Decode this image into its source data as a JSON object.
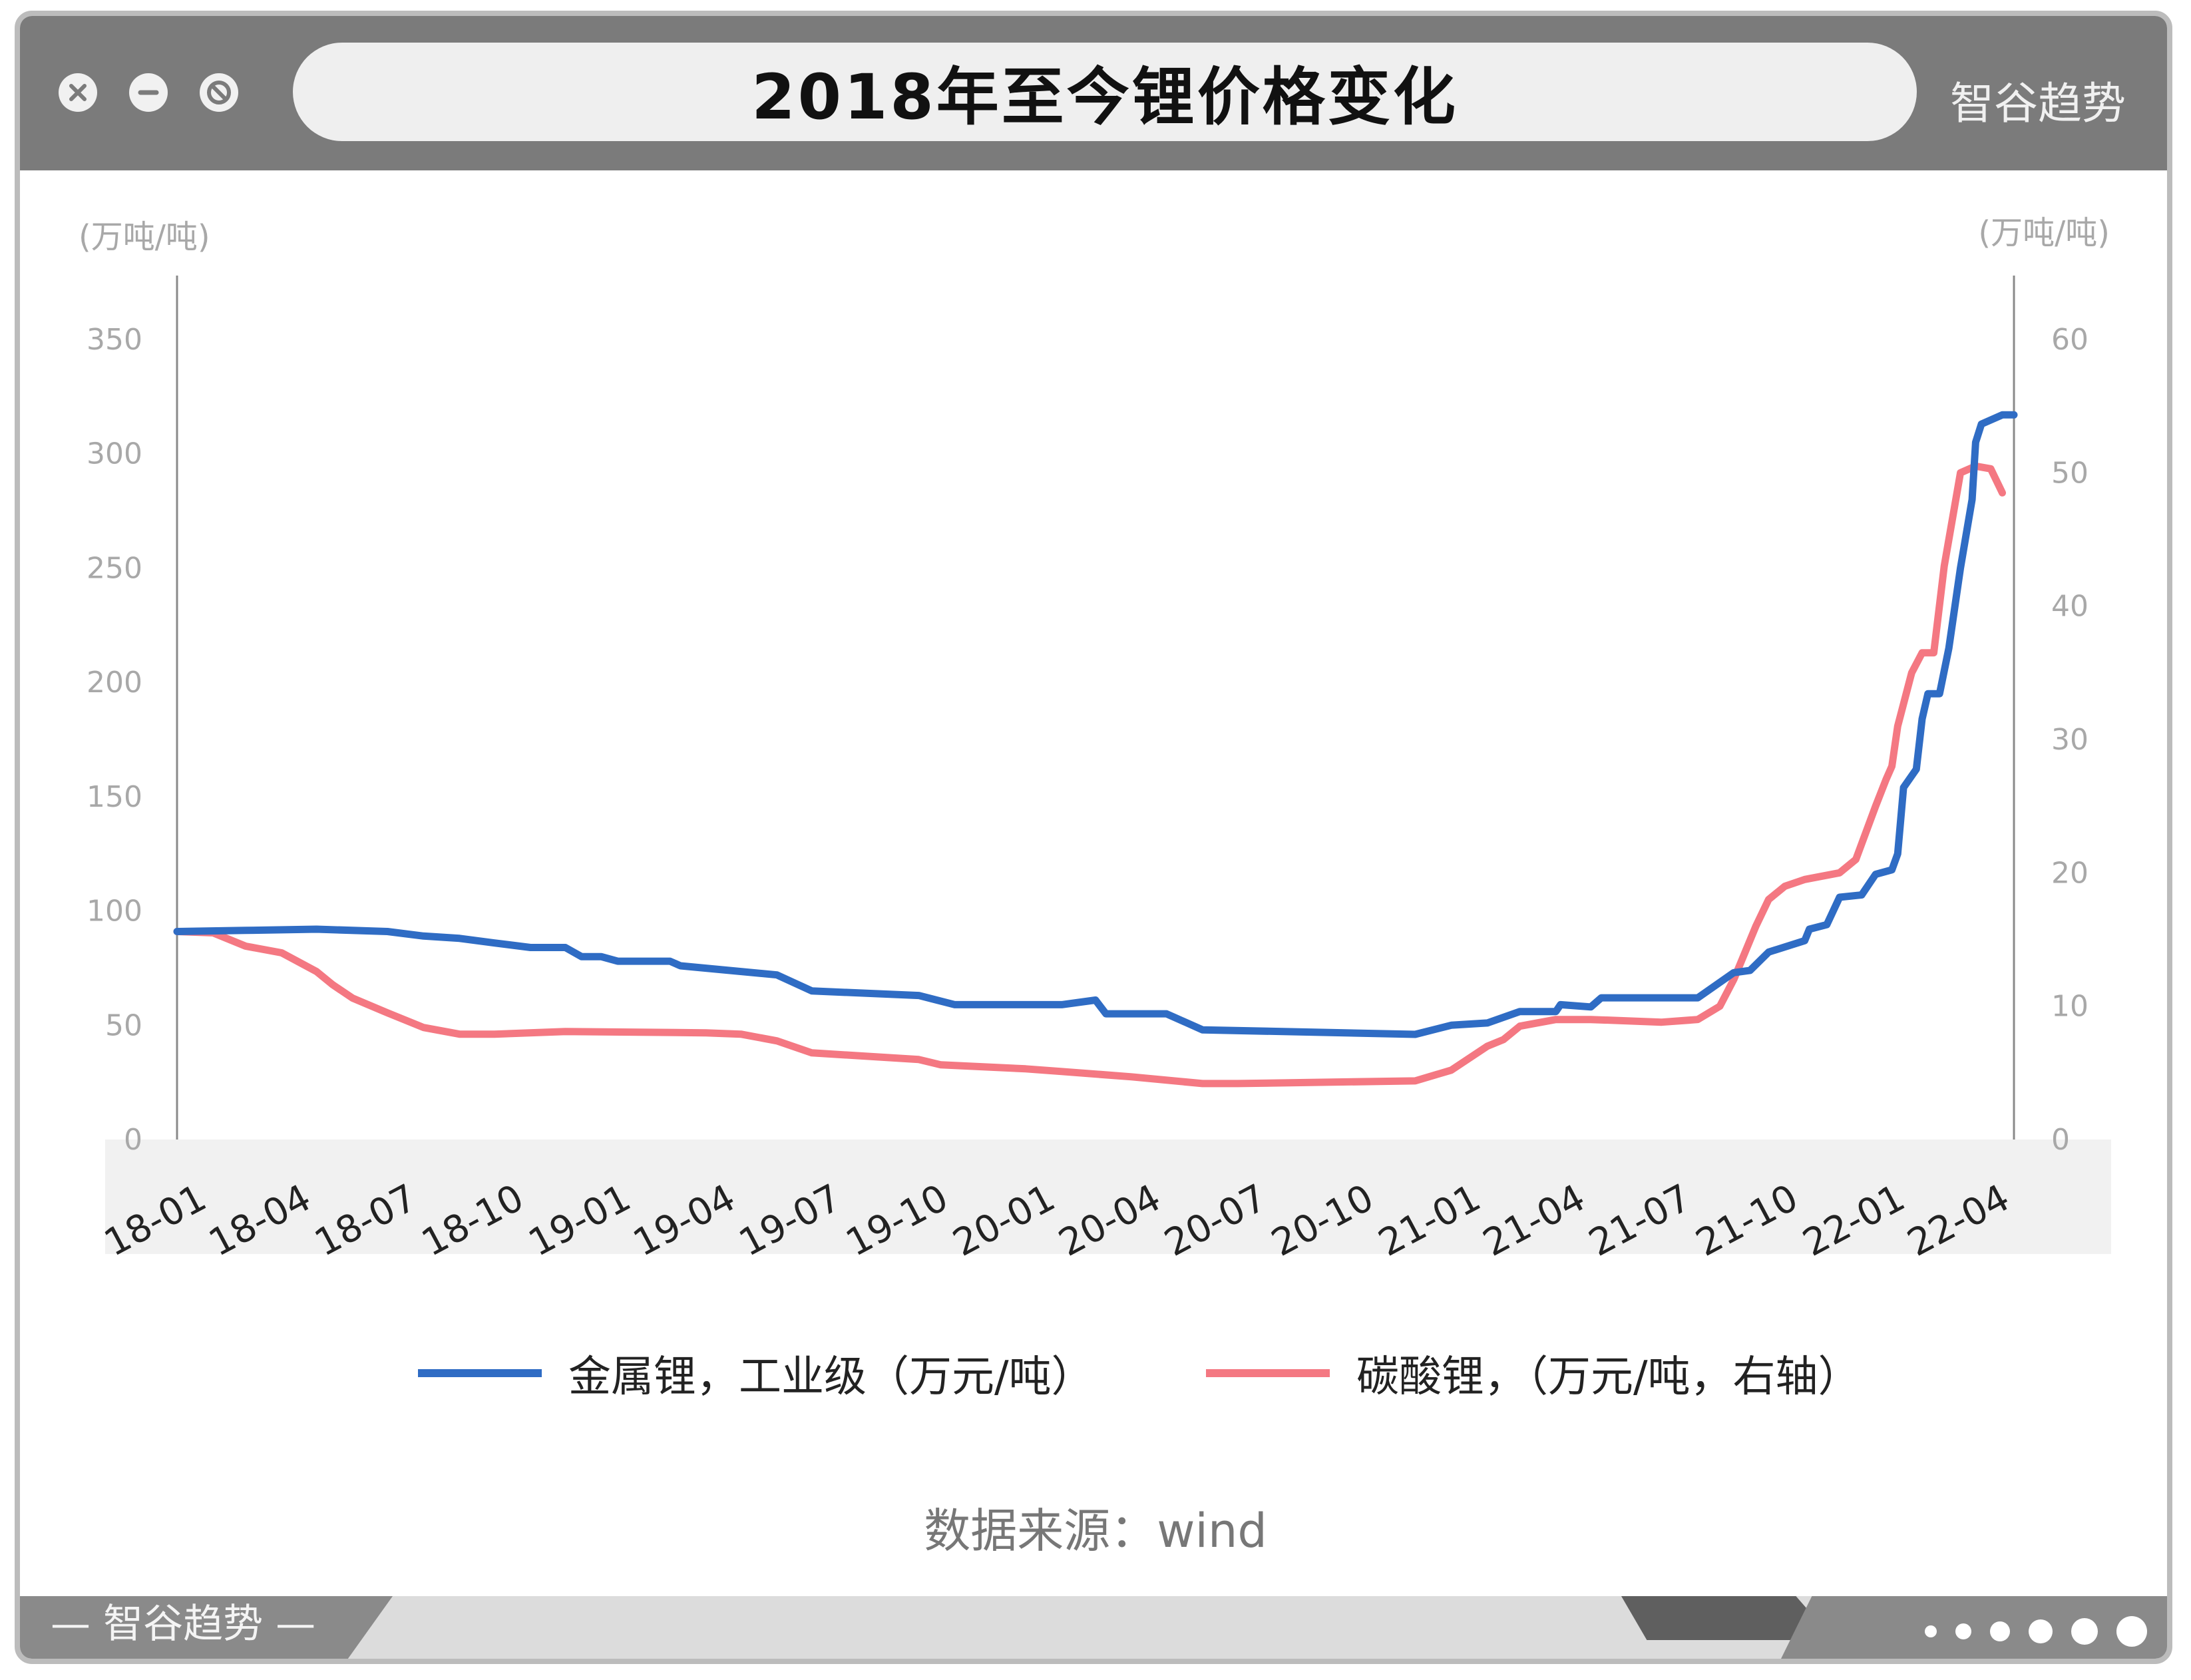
{
  "window": {
    "title": "2018年至今锂价格变化",
    "brand": "智谷趋势",
    "footer_brand": "— 智谷趋势 —"
  },
  "colors": {
    "titlebar": "#7b7b7b",
    "series_metal": "#2f6cc4",
    "series_carbonate": "#f47882",
    "axis_text": "#a8a8a8"
  },
  "icons": [
    "close-icon",
    "minimize-icon",
    "maximize-icon"
  ],
  "chart_data": {
    "type": "line",
    "x_ticks": [
      "18-01",
      "18-04",
      "18-07",
      "18-10",
      "19-01",
      "19-04",
      "19-07",
      "19-10",
      "20-01",
      "20-04",
      "20-07",
      "20-10",
      "21-01",
      "21-04",
      "21-07",
      "21-10",
      "22-01",
      "22-04"
    ],
    "left_axis": {
      "unit": "(万吨/吨)",
      "ticks": [
        0,
        50,
        100,
        150,
        200,
        250,
        300,
        350
      ],
      "ylim": [
        0,
        350
      ]
    },
    "right_axis": {
      "unit": "(万吨/吨)",
      "ticks": [
        0,
        10,
        20,
        30,
        40,
        50,
        60
      ],
      "ylim": [
        0,
        60
      ]
    },
    "grid": false,
    "legend_position": "bottom",
    "series": [
      {
        "name": "金属锂，工业级（万元/吨）",
        "axis": "left",
        "points": [
          [
            "2018-01",
            91
          ],
          [
            "2018-03",
            91.5
          ],
          [
            "2018-05",
            92
          ],
          [
            "2018-07",
            91
          ],
          [
            "2018-08",
            89
          ],
          [
            "2018-09",
            88
          ],
          [
            "2018-10",
            86
          ],
          [
            "2018-11",
            84
          ],
          [
            "2018-12",
            84
          ],
          [
            "2018-12-15",
            80
          ],
          [
            "2019-01",
            80
          ],
          [
            "2019-01-15",
            78
          ],
          [
            "2019-03",
            78
          ],
          [
            "2019-03-10",
            76
          ],
          [
            "2019-06",
            72
          ],
          [
            "2019-07",
            65
          ],
          [
            "2019-10",
            63
          ],
          [
            "2019-11",
            59
          ],
          [
            "2020-02",
            59
          ],
          [
            "2020-03",
            61
          ],
          [
            "2020-03-10",
            55
          ],
          [
            "2020-05",
            55
          ],
          [
            "2020-06",
            48
          ],
          [
            "2020-12",
            46
          ],
          [
            "2021-01",
            50
          ],
          [
            "2021-02",
            51
          ],
          [
            "2021-03",
            56
          ],
          [
            "2021-04",
            56
          ],
          [
            "2021-04-05",
            59
          ],
          [
            "2021-05",
            58
          ],
          [
            "2021-05-10",
            62
          ],
          [
            "2021-08",
            62
          ],
          [
            "2021-09",
            73
          ],
          [
            "2021-09-15",
            74
          ],
          [
            "2021-10",
            82
          ],
          [
            "2021-11",
            87
          ],
          [
            "2021-11-05",
            92
          ],
          [
            "2021-11-20",
            94
          ],
          [
            "2021-12",
            106
          ],
          [
            "2021-12-20",
            107
          ],
          [
            "2022-01",
            116
          ],
          [
            "2022-01-15",
            118
          ],
          [
            "2022-01-20",
            125
          ],
          [
            "2022-01-25",
            154
          ],
          [
            "2022-02-05",
            162
          ],
          [
            "2022-02-10",
            184
          ],
          [
            "2022-02-15",
            195
          ],
          [
            "2022-02-25",
            195
          ],
          [
            "2022-03-05",
            215
          ],
          [
            "2022-03-15",
            250
          ],
          [
            "2022-03-25",
            280
          ],
          [
            "2022-03-28",
            305
          ],
          [
            "2022-04-02",
            313
          ],
          [
            "2022-04-20",
            317
          ],
          [
            "2022-04-30",
            317
          ]
        ]
      },
      {
        "name": "碳酸锂，（万元/吨，右轴）",
        "axis": "right",
        "points": [
          [
            "2018-01",
            15.6
          ],
          [
            "2018-02",
            15.5
          ],
          [
            "2018-03",
            14.5
          ],
          [
            "2018-04",
            14
          ],
          [
            "2018-05",
            12.6
          ],
          [
            "2018-05-15",
            11.6
          ],
          [
            "2018-06",
            10.6
          ],
          [
            "2018-07",
            9.5
          ],
          [
            "2018-08",
            8.4
          ],
          [
            "2018-09",
            7.9
          ],
          [
            "2018-10",
            7.9
          ],
          [
            "2018-12",
            8.1
          ],
          [
            "2019-04",
            8.0
          ],
          [
            "2019-05",
            7.9
          ],
          [
            "2019-06",
            7.4
          ],
          [
            "2019-07",
            6.5
          ],
          [
            "2019-10",
            6.0
          ],
          [
            "2019-10-20",
            5.6
          ],
          [
            "2020-01",
            5.3
          ],
          [
            "2020-02",
            5.1
          ],
          [
            "2020-04",
            4.7
          ],
          [
            "2020-06",
            4.2
          ],
          [
            "2020-07",
            4.2
          ],
          [
            "2020-12",
            4.4
          ],
          [
            "2021-01",
            5.2
          ],
          [
            "2021-02",
            7.0
          ],
          [
            "2021-02-15",
            7.5
          ],
          [
            "2021-03",
            8.5
          ],
          [
            "2021-04",
            9.0
          ],
          [
            "2021-05",
            9.0
          ],
          [
            "2021-07",
            8.8
          ],
          [
            "2021-08",
            9.0
          ],
          [
            "2021-08-20",
            10.0
          ],
          [
            "2021-09",
            12.0
          ],
          [
            "2021-09-20",
            16.0
          ],
          [
            "2021-10",
            18.0
          ],
          [
            "2021-10-15",
            19.0
          ],
          [
            "2021-11",
            19.5
          ],
          [
            "2021-12",
            20.0
          ],
          [
            "2021-12-15",
            21.0
          ],
          [
            "2022-01",
            25.0
          ],
          [
            "2022-01-10",
            27.0
          ],
          [
            "2022-01-15",
            28.0
          ],
          [
            "2022-01-20",
            31.0
          ],
          [
            "2022-02",
            35.0
          ],
          [
            "2022-02-10",
            36.5
          ],
          [
            "2022-02-20",
            36.5
          ],
          [
            "2022-03",
            43.0
          ],
          [
            "2022-03-15",
            50.0
          ],
          [
            "2022-03-28",
            50.5
          ],
          [
            "2022-04-10",
            50.3
          ],
          [
            "2022-04-20",
            48.5
          ]
        ]
      }
    ]
  },
  "legend": {
    "metal": "金属锂，工业级（万元/吨）",
    "carbonate": "碳酸锂，（万元/吨，右轴）"
  },
  "source": "数据来源：wind"
}
